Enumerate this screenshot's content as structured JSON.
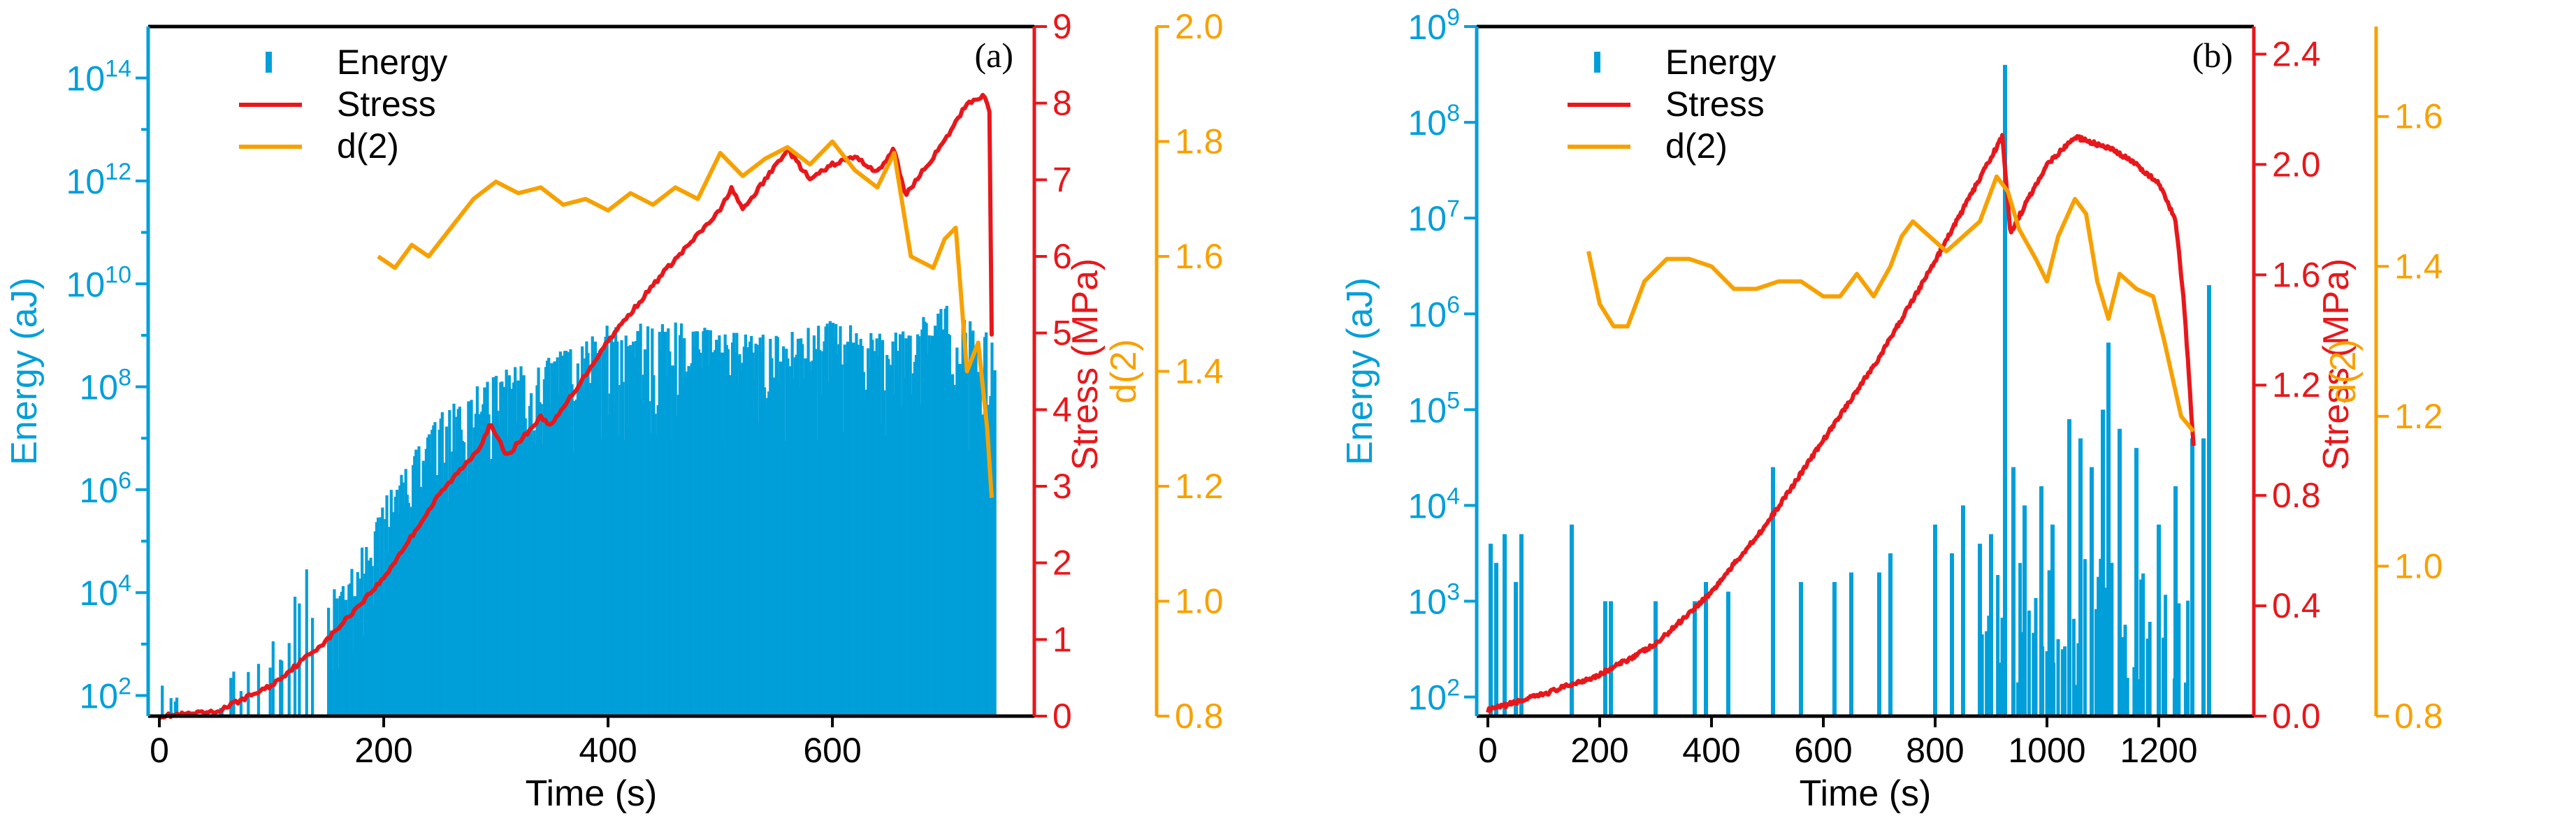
{
  "colors": {
    "energy": "#009fd9",
    "stress": "#e8171b",
    "d2": "#f7a100",
    "axis": "#000000"
  },
  "chart_data": [
    {
      "panel_label": "(a)",
      "type": "bar+line",
      "xlabel": "Time (s)",
      "x_range": [
        -10,
        780
      ],
      "x_ticks": [
        0,
        200,
        400,
        600
      ],
      "x_tick_labels": [
        "0",
        "200",
        "400",
        "600"
      ],
      "energy_axis": {
        "label": "Energy (aJ)",
        "scale": "log",
        "range_exp": [
          1.6,
          15.0
        ],
        "ticks_exp": [
          2,
          4,
          6,
          8,
          10,
          12,
          14
        ],
        "tick_labels": [
          "10",
          "10",
          "10",
          "10",
          "10",
          "10",
          "10"
        ],
        "tick_sup": [
          "2",
          "4",
          "6",
          "8",
          "10",
          "12",
          "14"
        ]
      },
      "stress_axis": {
        "label": "Stress (MPa)",
        "range": [
          0,
          9
        ],
        "ticks": [
          0,
          1,
          2,
          3,
          4,
          5,
          6,
          7,
          8,
          9
        ],
        "tick_labels": [
          "0",
          "1",
          "2",
          "3",
          "4",
          "5",
          "6",
          "7",
          "8",
          "9"
        ]
      },
      "d2_axis": {
        "label": "d(2)",
        "range": [
          0.8,
          2.0
        ],
        "ticks": [
          0.8,
          1.0,
          1.2,
          1.4,
          1.6,
          1.8,
          2.0
        ],
        "tick_labels": [
          "0.8",
          "1.0",
          "1.2",
          "1.4",
          "1.6",
          "1.8",
          "2.0"
        ]
      },
      "legend": [
        "Energy",
        "Stress",
        "d(2)"
      ],
      "series": [
        {
          "name": "Energy",
          "kind": "bars",
          "upper_envelope_exp": [
            [
              0,
              2.2
            ],
            [
              60,
              2.3
            ],
            [
              70,
              2.8
            ],
            [
              100,
              3.0
            ],
            [
              130,
              4.5
            ],
            [
              160,
              4.0
            ],
            [
              200,
              5.8
            ],
            [
              250,
              7.5
            ],
            [
              300,
              8.3
            ],
            [
              350,
              8.6
            ],
            [
              400,
              9.2
            ],
            [
              450,
              9.3
            ],
            [
              500,
              9.1
            ],
            [
              550,
              9.0
            ],
            [
              600,
              9.3
            ],
            [
              650,
              9.0
            ],
            [
              700,
              9.6
            ],
            [
              745,
              9.0
            ]
          ]
        },
        {
          "name": "Stress",
          "kind": "line",
          "points": [
            [
              0,
              0
            ],
            [
              50,
              0.05
            ],
            [
              100,
              0.4
            ],
            [
              150,
              1.0
            ],
            [
              200,
              1.8
            ],
            [
              250,
              2.9
            ],
            [
              285,
              3.5
            ],
            [
              295,
              3.8
            ],
            [
              310,
              3.4
            ],
            [
              340,
              3.9
            ],
            [
              350,
              3.8
            ],
            [
              400,
              4.9
            ],
            [
              450,
              5.8
            ],
            [
              500,
              6.6
            ],
            [
              510,
              6.9
            ],
            [
              520,
              6.6
            ],
            [
              540,
              7.0
            ],
            [
              560,
              7.4
            ],
            [
              580,
              7.0
            ],
            [
              600,
              7.2
            ],
            [
              620,
              7.3
            ],
            [
              640,
              7.1
            ],
            [
              655,
              7.4
            ],
            [
              665,
              6.8
            ],
            [
              700,
              7.5
            ],
            [
              720,
              8.0
            ],
            [
              735,
              8.1
            ],
            [
              740,
              7.9
            ],
            [
              742,
              5.0
            ]
          ]
        },
        {
          "name": "d(2)",
          "kind": "line",
          "points": [
            [
              195,
              1.6
            ],
            [
              210,
              1.58
            ],
            [
              225,
              1.62
            ],
            [
              240,
              1.6
            ],
            [
              260,
              1.65
            ],
            [
              280,
              1.7
            ],
            [
              300,
              1.73
            ],
            [
              320,
              1.71
            ],
            [
              340,
              1.72
            ],
            [
              360,
              1.69
            ],
            [
              380,
              1.7
            ],
            [
              400,
              1.68
            ],
            [
              420,
              1.71
            ],
            [
              440,
              1.69
            ],
            [
              460,
              1.72
            ],
            [
              480,
              1.7
            ],
            [
              500,
              1.78
            ],
            [
              520,
              1.74
            ],
            [
              540,
              1.77
            ],
            [
              560,
              1.79
            ],
            [
              580,
              1.76
            ],
            [
              600,
              1.8
            ],
            [
              620,
              1.75
            ],
            [
              640,
              1.72
            ],
            [
              655,
              1.78
            ],
            [
              670,
              1.6
            ],
            [
              690,
              1.58
            ],
            [
              700,
              1.63
            ],
            [
              710,
              1.65
            ],
            [
              720,
              1.4
            ],
            [
              730,
              1.45
            ],
            [
              738,
              1.3
            ],
            [
              742,
              1.18
            ]
          ]
        }
      ]
    },
    {
      "panel_label": "(b)",
      "type": "bar+line",
      "xlabel": "Time (s)",
      "x_range": [
        -20,
        1370
      ],
      "x_ticks": [
        0,
        200,
        400,
        600,
        800,
        1000,
        1200
      ],
      "x_tick_labels": [
        "0",
        "200",
        "400",
        "600",
        "800",
        "1000",
        "1200"
      ],
      "energy_axis": {
        "label": "Energy (aJ)",
        "scale": "log",
        "range_exp": [
          1.8,
          9.0
        ],
        "ticks_exp": [
          2,
          3,
          4,
          5,
          6,
          7,
          8,
          9
        ],
        "tick_labels": [
          "10",
          "10",
          "10",
          "10",
          "10",
          "10",
          "10",
          "10"
        ],
        "tick_sup": [
          "2",
          "3",
          "4",
          "5",
          "6",
          "7",
          "8",
          "9"
        ]
      },
      "stress_axis": {
        "label": "Stress (MPa)",
        "range": [
          0,
          2.5
        ],
        "ticks": [
          0.0,
          0.4,
          0.8,
          1.2,
          1.6,
          2.0,
          2.4
        ],
        "tick_labels": [
          "0.0",
          "0.4",
          "0.8",
          "1.2",
          "1.6",
          "2.0",
          "2.4"
        ]
      },
      "d2_axis": {
        "label": "d(2)",
        "range": [
          0.8,
          1.72
        ],
        "ticks": [
          0.8,
          1.0,
          1.2,
          1.4,
          1.6
        ],
        "tick_labels": [
          "0.8",
          "1.0",
          "1.2",
          "1.4",
          "1.6"
        ]
      },
      "legend": [
        "Energy",
        "Stress",
        "d(2)"
      ],
      "series": [
        {
          "name": "Energy",
          "kind": "bars",
          "spikes": [
            [
              5,
              3.6
            ],
            [
              15,
              3.4
            ],
            [
              30,
              3.7
            ],
            [
              50,
              3.2
            ],
            [
              60,
              3.7
            ],
            [
              150,
              3.8
            ],
            [
              210,
              3.0
            ],
            [
              220,
              3.0
            ],
            [
              300,
              3.0
            ],
            [
              370,
              3.0
            ],
            [
              390,
              3.2
            ],
            [
              430,
              3.1
            ],
            [
              510,
              4.4
            ],
            [
              560,
              3.2
            ],
            [
              620,
              3.2
            ],
            [
              650,
              3.3
            ],
            [
              700,
              3.3
            ],
            [
              720,
              3.5
            ],
            [
              800,
              3.8
            ],
            [
              830,
              3.5
            ],
            [
              850,
              4.0
            ],
            [
              880,
              3.6
            ],
            [
              900,
              3.7
            ],
            [
              925,
              8.6
            ],
            [
              940,
              4.4
            ],
            [
              960,
              4.0
            ],
            [
              990,
              4.2
            ],
            [
              1010,
              3.8
            ],
            [
              1040,
              4.9
            ],
            [
              1060,
              4.7
            ],
            [
              1080,
              4.4
            ],
            [
              1100,
              5.0
            ],
            [
              1110,
              5.7
            ],
            [
              1130,
              4.8
            ],
            [
              1160,
              4.6
            ],
            [
              1200,
              3.8
            ],
            [
              1230,
              4.2
            ],
            [
              1260,
              4.7
            ],
            [
              1280,
              4.7
            ],
            [
              1290,
              6.3
            ]
          ],
          "base_activity": [
            [
              880,
              3.0
            ],
            [
              900,
              3.2
            ],
            [
              940,
              3.5
            ],
            [
              1000,
              3.3
            ],
            [
              1050,
              3.6
            ],
            [
              1100,
              3.8
            ],
            [
              1150,
              3.4
            ],
            [
              1200,
              3.2
            ],
            [
              1260,
              3.0
            ]
          ]
        },
        {
          "name": "Stress",
          "kind": "line",
          "points": [
            [
              0,
              0.02
            ],
            [
              100,
              0.08
            ],
            [
              200,
              0.15
            ],
            [
              300,
              0.26
            ],
            [
              400,
              0.45
            ],
            [
              500,
              0.7
            ],
            [
              600,
              1.0
            ],
            [
              700,
              1.3
            ],
            [
              800,
              1.65
            ],
            [
              880,
              1.95
            ],
            [
              920,
              2.1
            ],
            [
              935,
              1.75
            ],
            [
              960,
              1.85
            ],
            [
              1000,
              2.0
            ],
            [
              1050,
              2.1
            ],
            [
              1080,
              2.08
            ],
            [
              1120,
              2.05
            ],
            [
              1160,
              2.0
            ],
            [
              1200,
              1.93
            ],
            [
              1230,
              1.8
            ],
            [
              1245,
              1.5
            ],
            [
              1255,
              1.2
            ],
            [
              1262,
              0.98
            ]
          ]
        },
        {
          "name": "d(2)",
          "kind": "line",
          "points": [
            [
              180,
              1.42
            ],
            [
              200,
              1.35
            ],
            [
              225,
              1.32
            ],
            [
              250,
              1.32
            ],
            [
              280,
              1.38
            ],
            [
              320,
              1.41
            ],
            [
              360,
              1.41
            ],
            [
              400,
              1.4
            ],
            [
              440,
              1.37
            ],
            [
              480,
              1.37
            ],
            [
              520,
              1.38
            ],
            [
              560,
              1.38
            ],
            [
              600,
              1.36
            ],
            [
              630,
              1.36
            ],
            [
              660,
              1.39
            ],
            [
              690,
              1.36
            ],
            [
              720,
              1.4
            ],
            [
              740,
              1.44
            ],
            [
              760,
              1.46
            ],
            [
              790,
              1.44
            ],
            [
              820,
              1.42
            ],
            [
              850,
              1.44
            ],
            [
              880,
              1.46
            ],
            [
              910,
              1.52
            ],
            [
              930,
              1.5
            ],
            [
              950,
              1.45
            ],
            [
              980,
              1.41
            ],
            [
              1000,
              1.38
            ],
            [
              1020,
              1.44
            ],
            [
              1050,
              1.49
            ],
            [
              1070,
              1.47
            ],
            [
              1090,
              1.38
            ],
            [
              1110,
              1.33
            ],
            [
              1130,
              1.39
            ],
            [
              1160,
              1.37
            ],
            [
              1190,
              1.36
            ],
            [
              1210,
              1.3
            ],
            [
              1240,
              1.2
            ],
            [
              1262,
              1.18
            ]
          ]
        }
      ]
    }
  ]
}
